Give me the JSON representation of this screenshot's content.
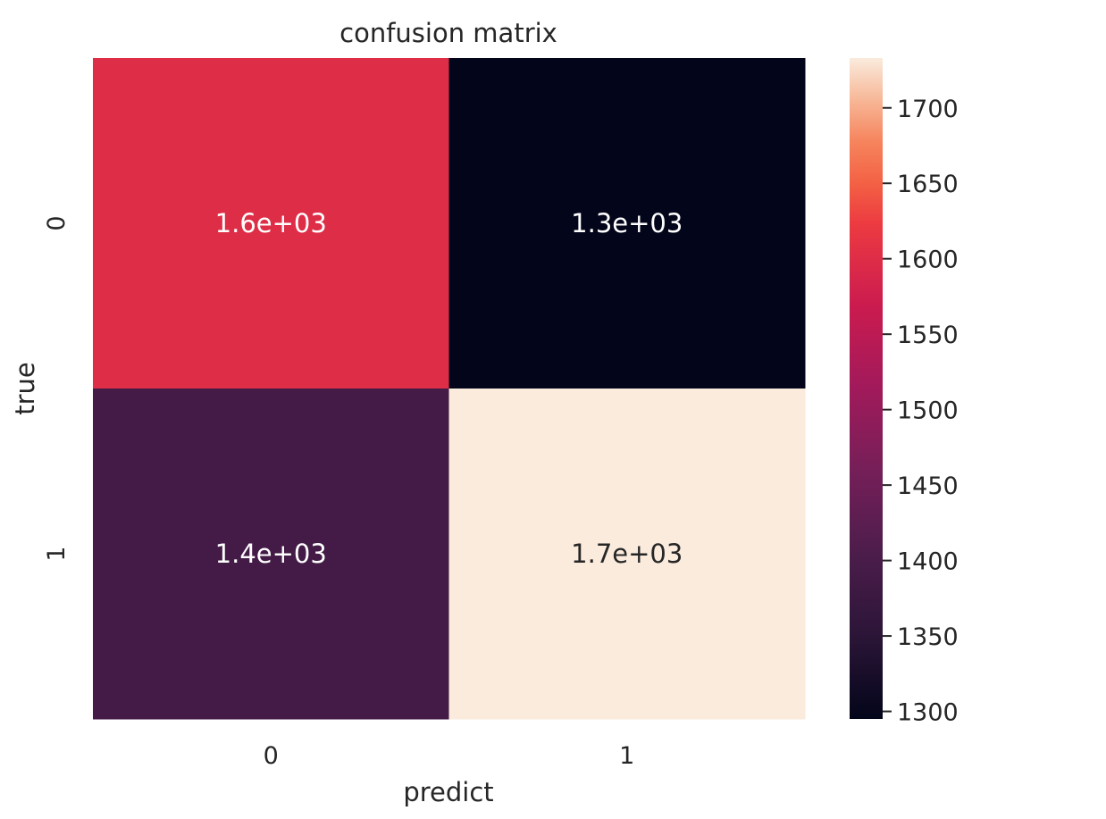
{
  "chart_data": {
    "type": "heatmap",
    "title": "confusion matrix",
    "xlabel": "predict",
    "ylabel": "true",
    "x_categories": [
      "0",
      "1"
    ],
    "y_categories": [
      "0",
      "1"
    ],
    "values": [
      [
        1600,
        1295
      ],
      [
        1390,
        1733
      ]
    ],
    "annotations": [
      [
        "1.6e+03",
        "1.3e+03"
      ],
      [
        "1.4e+03",
        "1.7e+03"
      ]
    ],
    "colormap": "rocket",
    "colorbar": {
      "range": [
        1295,
        1733
      ],
      "ticks": [
        1300,
        1350,
        1400,
        1450,
        1500,
        1550,
        1600,
        1650,
        1700
      ]
    }
  }
}
